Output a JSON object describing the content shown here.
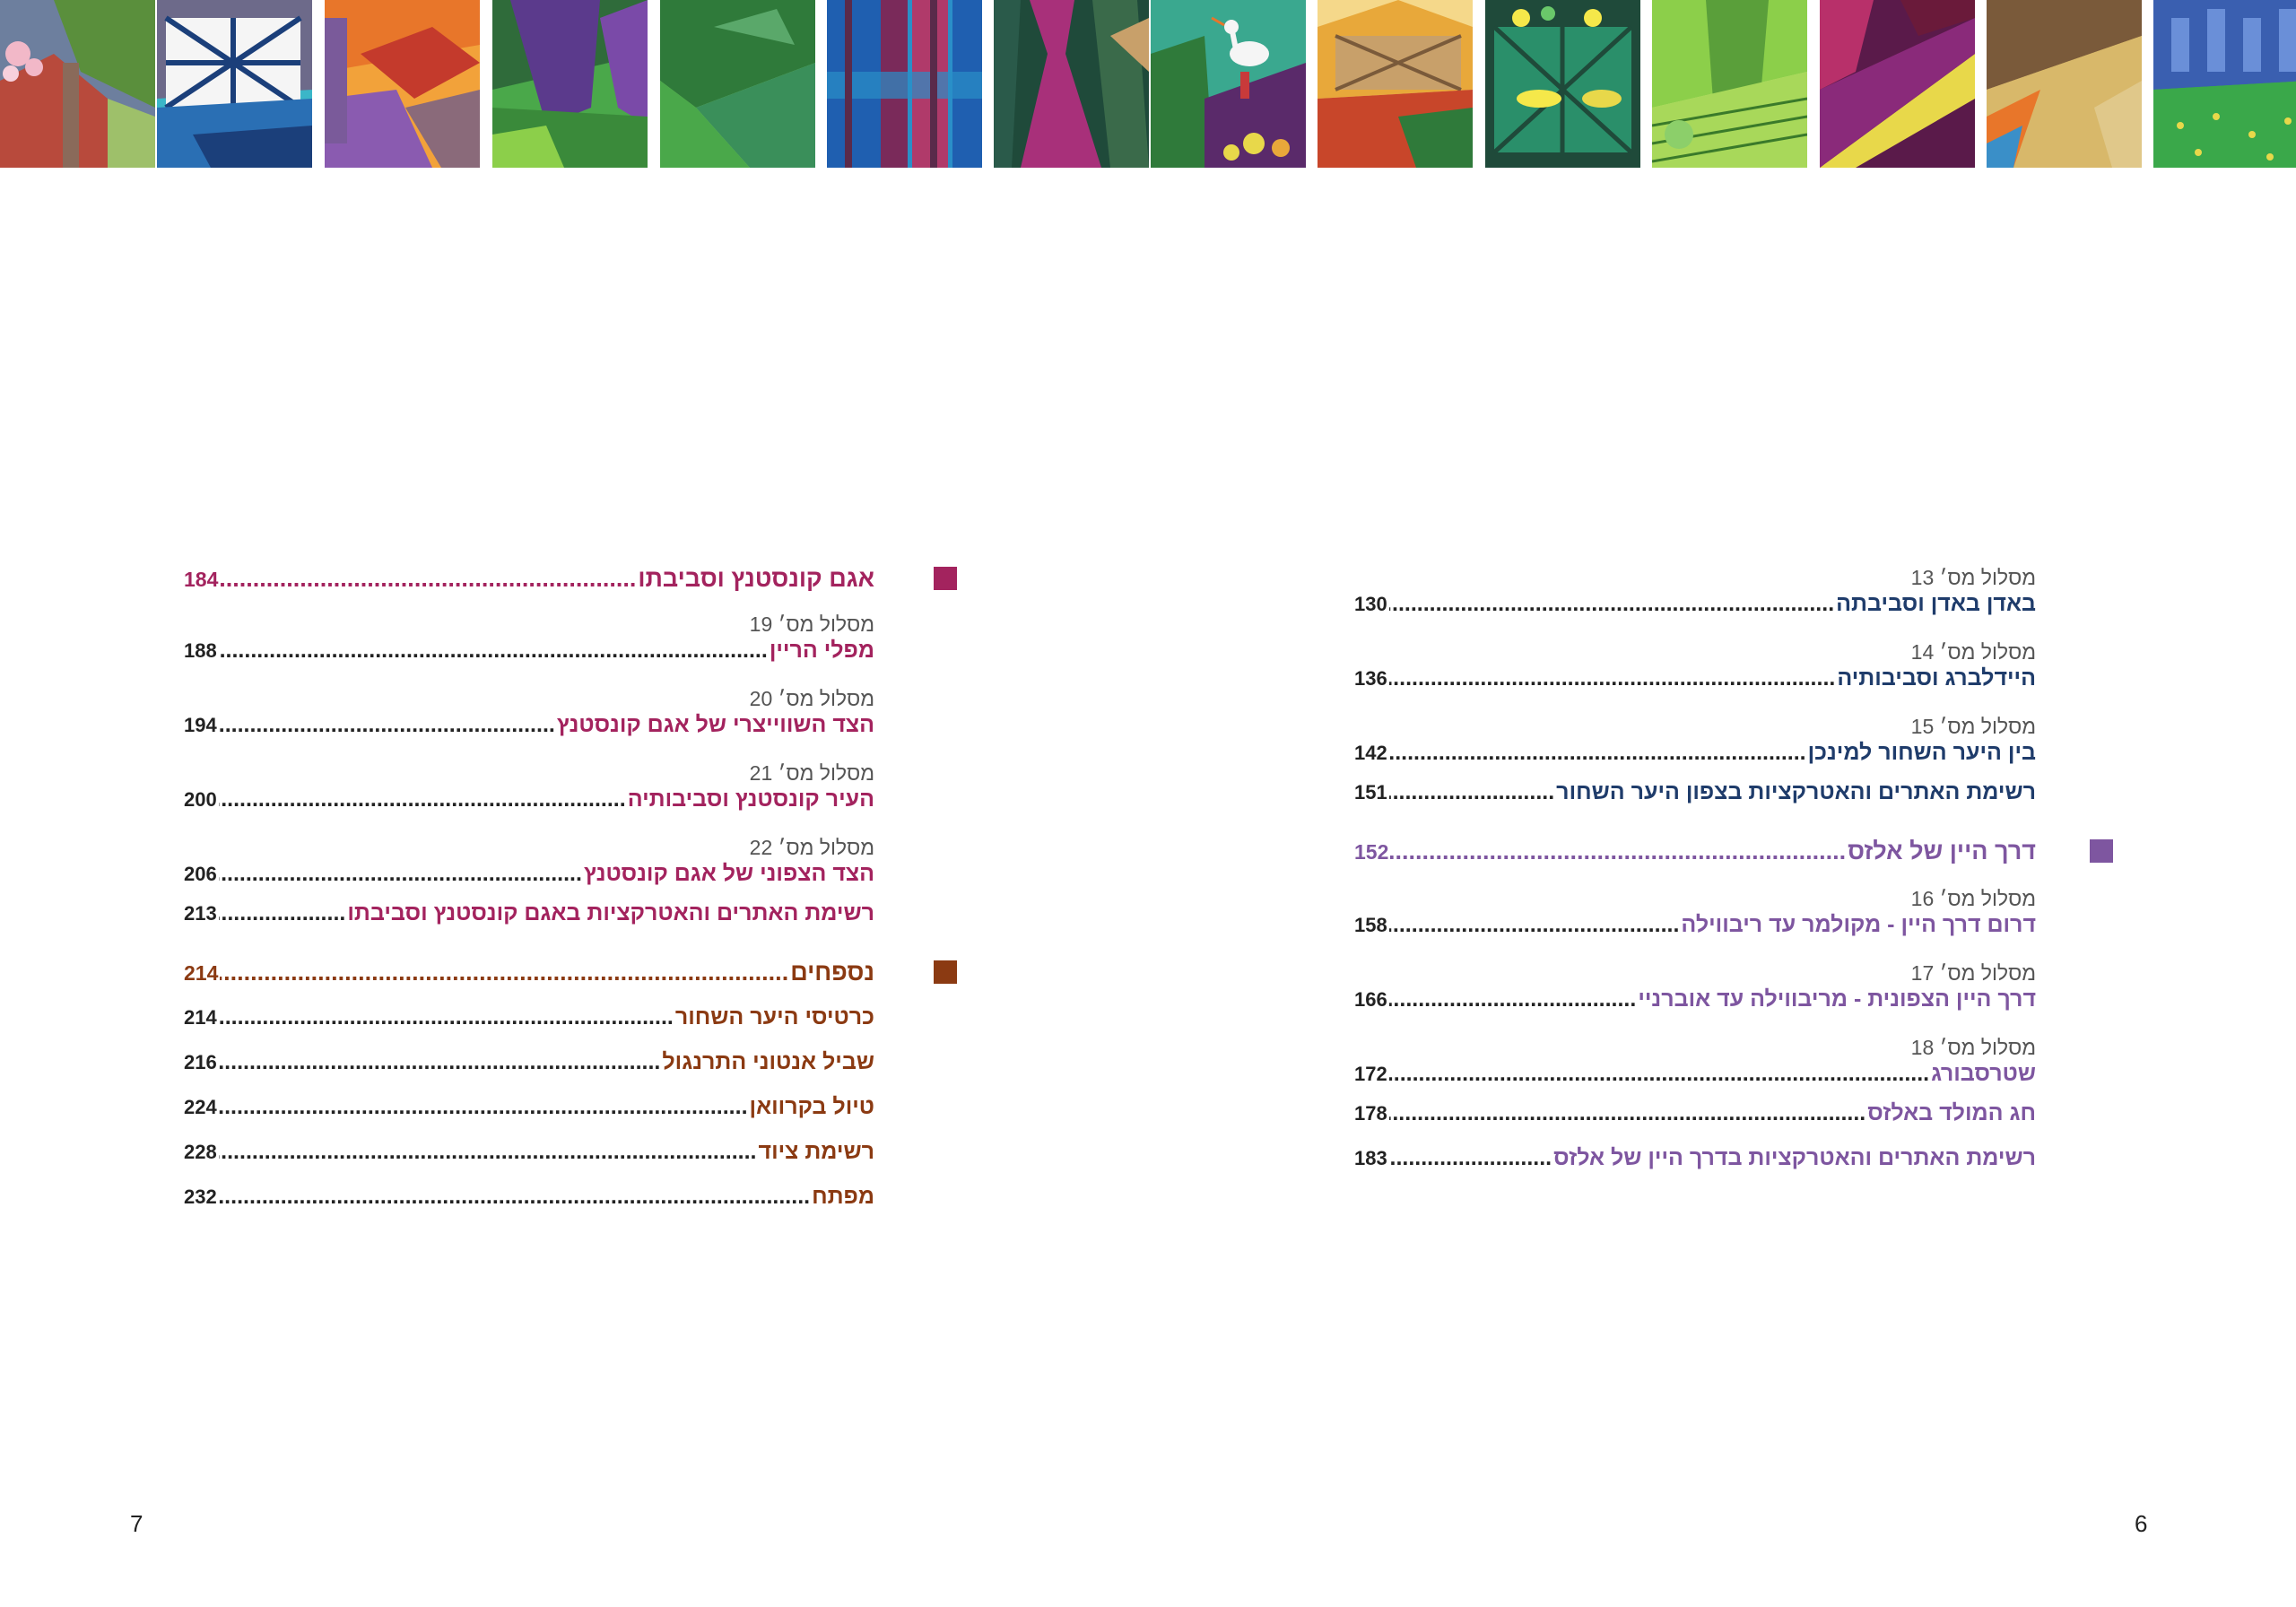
{
  "header_tiles": [
    {
      "icon": "blossom-chalet-tile",
      "colors": [
        "#5a8f3c",
        "#b84a3c",
        "#f2b8c8",
        "#6d7f9e"
      ]
    },
    {
      "icon": "timber-house-tile",
      "colors": [
        "#2a6fb4",
        "#1b3f7a",
        "#f5f5f5",
        "#3bb6c8"
      ]
    },
    {
      "icon": "orange-roofs-tile",
      "colors": [
        "#e8762a",
        "#c43a2c",
        "#8a5bb0",
        "#f2a23a"
      ]
    },
    {
      "icon": "purple-hills-tile",
      "colors": [
        "#5b3a8c",
        "#2f6b3a",
        "#7a4aa8",
        "#4aa84a"
      ]
    },
    {
      "icon": "green-fields-tile",
      "colors": [
        "#4aa84a",
        "#2f7a3a",
        "#8ccf6a",
        "#3a8f5a"
      ]
    },
    {
      "icon": "blue-forest-tile",
      "colors": [
        "#1f5fb0",
        "#b03a6a",
        "#2a8fc8",
        "#7a2a5a"
      ]
    },
    {
      "icon": "dark-forest-tile",
      "colors": [
        "#1f4a3a",
        "#a8307a",
        "#3a6a4a",
        "#c8a06a"
      ]
    },
    {
      "icon": "stork-tile",
      "colors": [
        "#3aa88f",
        "#5a2a6a",
        "#f5f5f5",
        "#c83a3a"
      ]
    },
    {
      "icon": "village-tile",
      "colors": [
        "#e8a83a",
        "#c8462a",
        "#2f7a3a",
        "#f5d88a"
      ]
    },
    {
      "icon": "green-timber-tile",
      "colors": [
        "#2a8f6a",
        "#1f4a3a",
        "#f5e84a",
        "#6ac86a"
      ]
    },
    {
      "icon": "vineyard-tile",
      "colors": [
        "#8ccf4a",
        "#5a9f3a",
        "#c8e87a",
        "#3a7a2a"
      ]
    },
    {
      "icon": "magenta-slope-tile",
      "colors": [
        "#8a2a7a",
        "#e8d84a",
        "#5a1a4a",
        "#b8306a"
      ]
    },
    {
      "icon": "golden-slope-tile",
      "colors": [
        "#e8762a",
        "#d8b86a",
        "#7a5a3a",
        "#3a8fc8"
      ]
    },
    {
      "icon": "blue-lake-tile",
      "colors": [
        "#3a5fb0",
        "#3aa84a",
        "#6a8fd8",
        "#2a4a8a"
      ]
    }
  ],
  "right_column": {
    "entries": [
      {
        "route": "מסלול מס׳ 13",
        "title": "באדן באדן וסביבתה",
        "page": "130"
      },
      {
        "route": "מסלול מס׳ 14",
        "title": "היידלברג וסביבותיה",
        "page": "136"
      },
      {
        "route": "מסלול מס׳ 15",
        "title": "בין היער השחור למינכן",
        "page": "142"
      }
    ],
    "list_entry": {
      "title": "רשימת האתרים והאטרקציות בצפון היער השחור",
      "page": "151"
    },
    "section": {
      "title": "דרך היין של אלזס",
      "page": "152",
      "marker_color": "#7e56a0"
    },
    "section_entries": [
      {
        "route": "מסלול מס׳ 16",
        "title": "דרום דרך היין - מקולמר עד ריבווילה",
        "page": "158"
      },
      {
        "route": "מסלול מס׳ 17",
        "title": "דרך היין הצפונית - מריבווילה עד אוברניי",
        "page": "166"
      },
      {
        "route": "מסלול מס׳ 18",
        "title": "שטרסבורג",
        "page": "172"
      }
    ],
    "section_list": [
      {
        "title": "חג המולד באלזס",
        "page": "178"
      },
      {
        "title": "רשימת האתרים והאטרקציות בדרך היין של אלזס",
        "page": "183"
      }
    ],
    "page_number": "6"
  },
  "left_column": {
    "section": {
      "title": "אגם קונסטנץ וסביבתו",
      "page": "184",
      "marker_color": "#a3235e"
    },
    "entries": [
      {
        "route": "מסלול מס׳ 19",
        "title": "מפלי הריין",
        "page": "188"
      },
      {
        "route": "מסלול מס׳ 20",
        "title": "הצד השווייצרי של אגם קונסטנץ",
        "page": "194"
      },
      {
        "route": "מסלול מס׳ 21",
        "title": "העיר קונסטנץ וסביבותיה",
        "page": "200"
      },
      {
        "route": "מסלול מס׳ 22",
        "title": "הצד הצפוני של אגם קונסטנץ",
        "page": "206"
      }
    ],
    "list_entry": {
      "title": "רשימת האתרים והאטרקציות באגם קונסטנץ וסביבתו",
      "page": "213"
    },
    "appendix": {
      "title": "נספחים",
      "page": "214",
      "marker_color": "#8b3a12"
    },
    "appendix_items": [
      {
        "title": "כרטיסי היער השחור",
        "page": "214"
      },
      {
        "title": "שביל אנטוני התרנגול",
        "page": "216"
      },
      {
        "title": "טיול בקרוואן",
        "page": "224"
      },
      {
        "title": "רשימת ציוד",
        "page": "228"
      },
      {
        "title": "מפתח",
        "page": "232"
      }
    ],
    "page_number": "7"
  }
}
